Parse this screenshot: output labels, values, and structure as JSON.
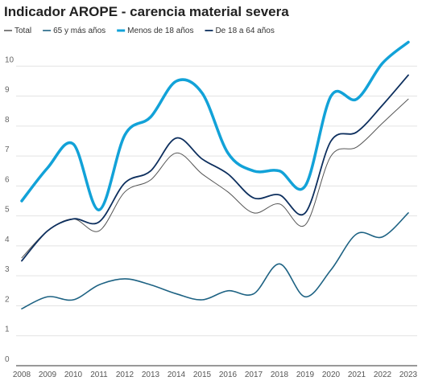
{
  "chart_data": {
    "type": "line",
    "title": "Indicador AROPE - carencia material severa",
    "categories": [
      "2008",
      "2009",
      "2010",
      "2011",
      "2012",
      "2013",
      "2014",
      "2015",
      "2016",
      "2017",
      "2018",
      "2019",
      "2020",
      "2021",
      "2022",
      "2023"
    ],
    "series": [
      {
        "name": "Total",
        "color": "#555555",
        "width": 1,
        "values": [
          3.6,
          4.5,
          4.9,
          4.5,
          5.8,
          6.2,
          7.1,
          6.4,
          5.8,
          5.1,
          5.4,
          4.7,
          7.0,
          7.3,
          8.1,
          8.9
        ]
      },
      {
        "name": "65 y más años",
        "color": "#1d6283",
        "width": 1.6,
        "values": [
          1.9,
          2.3,
          2.2,
          2.7,
          2.9,
          2.7,
          2.4,
          2.2,
          2.5,
          2.4,
          3.4,
          2.3,
          3.2,
          4.4,
          4.3,
          5.1
        ]
      },
      {
        "name": "Menos de 18 años",
        "color": "#12a2d8",
        "width": 3.5,
        "values": [
          5.5,
          6.6,
          7.4,
          5.2,
          7.7,
          8.3,
          9.5,
          9.1,
          7.1,
          6.5,
          6.5,
          6.0,
          9.0,
          8.9,
          10.1,
          10.8
        ]
      },
      {
        "name": "De 18 a 64 años",
        "color": "#0d2f5e",
        "width": 1.8,
        "values": [
          3.5,
          4.5,
          4.9,
          4.8,
          6.1,
          6.5,
          7.6,
          6.9,
          6.4,
          5.6,
          5.7,
          5.1,
          7.5,
          7.8,
          8.7,
          9.7
        ]
      }
    ],
    "ylim": [
      0,
      11
    ],
    "yticks": [
      0,
      1,
      2,
      3,
      4,
      5,
      6,
      7,
      8,
      9,
      10
    ],
    "grid": true
  }
}
